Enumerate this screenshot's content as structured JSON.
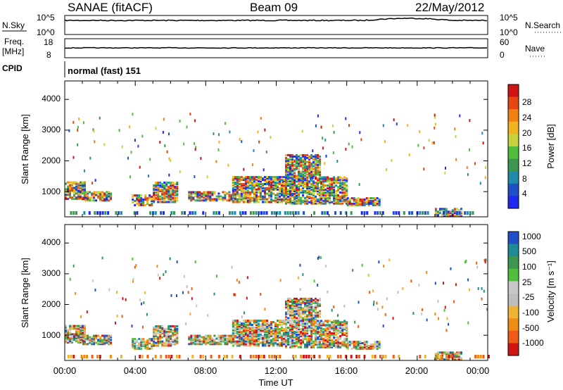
{
  "header": {
    "station": "SANAE (fitACF)",
    "beam": "Beam 09",
    "date": "22/May/2012"
  },
  "noise_panel": {
    "left_label": "N.Sky",
    "right_label": "N.Search",
    "left_ticks": [
      "10^5",
      "10^0"
    ],
    "right_ticks": [
      "10^5",
      "10^0"
    ]
  },
  "freq_panel": {
    "left_label_1": "Freq.",
    "left_label_2": "[MHz]",
    "right_label": "Nave",
    "left_ticks": [
      "18",
      "8"
    ],
    "right_ticks": [
      "60",
      "0"
    ]
  },
  "cpid": {
    "label": "CPID",
    "value": "normal (fast) 151"
  },
  "x_axis": {
    "label": "Time UT",
    "ticks": [
      "00:00",
      "04:00",
      "08:00",
      "12:00",
      "16:00",
      "20:00",
      "00:00"
    ]
  },
  "power_panel": {
    "ylabel": "Slant Range [km]",
    "yticks": [
      "1000",
      "2000",
      "3000",
      "4000"
    ],
    "colorbar_label": "Power [dB]",
    "colorbar_ticks": [
      "4",
      "8",
      "12",
      "16",
      "20",
      "24",
      "28"
    ]
  },
  "velocity_panel": {
    "ylabel": "Slant Range [km]",
    "yticks": [
      "1000",
      "2000",
      "3000",
      "4000"
    ],
    "colorbar_label": "Velocity [m s⁻¹]",
    "colorbar_ticks": [
      "-1000",
      "-500",
      "-100",
      "-25",
      "25",
      "100",
      "500",
      "1000"
    ]
  },
  "chart_data": {
    "type": "heatmap",
    "x_range_hours": [
      0,
      24
    ],
    "y_range_km": [
      180,
      4600
    ],
    "power_colors": [
      "#1e28f0",
      "#2050c8",
      "#1e8caa",
      "#3c9650",
      "#50be3c",
      "#c8d23c",
      "#f0b41e",
      "#f08214",
      "#e64614",
      "#d21414"
    ],
    "velocity_colors": [
      "#d21414",
      "#f05a14",
      "#f08c14",
      "#f0b432",
      "#bebebe",
      "#c8c8c8",
      "#50be3c",
      "#3c9650",
      "#1e8c96",
      "#2050c8"
    ],
    "echo_regions": [
      {
        "t_start": 0.0,
        "t_end": 1.2,
        "r_low": 750,
        "r_high": 1300
      },
      {
        "t_start": 1.0,
        "t_end": 2.6,
        "r_low": 700,
        "r_high": 1000
      },
      {
        "t_start": 3.8,
        "t_end": 5.0,
        "r_low": 550,
        "r_high": 900
      },
      {
        "t_start": 5.0,
        "t_end": 6.4,
        "r_low": 650,
        "r_high": 1300
      },
      {
        "t_start": 7.0,
        "t_end": 9.5,
        "r_low": 700,
        "r_high": 1000
      },
      {
        "t_start": 9.5,
        "t_end": 12.5,
        "r_low": 650,
        "r_high": 1500
      },
      {
        "t_start": 12.5,
        "t_end": 14.5,
        "r_low": 600,
        "r_high": 2200
      },
      {
        "t_start": 14.5,
        "t_end": 16.0,
        "r_low": 600,
        "r_high": 1500
      },
      {
        "t_start": 16.0,
        "t_end": 17.9,
        "r_low": 550,
        "r_high": 800
      },
      {
        "t_start": 21.0,
        "t_end": 22.5,
        "r_low": 200,
        "r_high": 450
      }
    ]
  }
}
